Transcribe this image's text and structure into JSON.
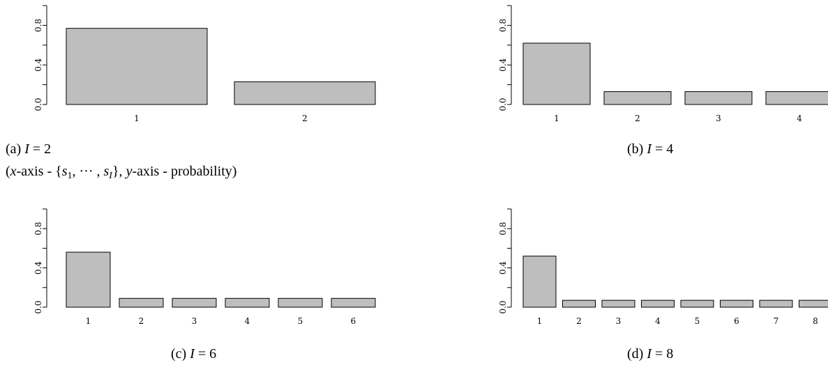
{
  "chart_data": [
    {
      "type": "bar",
      "caption_prefix": "(a) ",
      "caption_var": "I",
      "caption_eq": " = 2",
      "categories": [
        "1",
        "2"
      ],
      "values": [
        0.77,
        0.23
      ],
      "ylim": [
        0,
        1
      ],
      "yticks": [
        "0.0",
        "0.4",
        "0.8"
      ],
      "grid": false
    },
    {
      "type": "bar",
      "caption_prefix": "(b) ",
      "caption_var": "I",
      "caption_eq": " = 4",
      "categories": [
        "1",
        "2",
        "3",
        "4"
      ],
      "values": [
        0.62,
        0.13,
        0.13,
        0.13
      ],
      "ylim": [
        0,
        1
      ],
      "yticks": [
        "0.0",
        "0.4",
        "0.8"
      ],
      "grid": false
    },
    {
      "type": "bar",
      "caption_prefix": "(c) ",
      "caption_var": "I",
      "caption_eq": " = 6",
      "categories": [
        "1",
        "2",
        "3",
        "4",
        "5",
        "6"
      ],
      "values": [
        0.56,
        0.09,
        0.09,
        0.09,
        0.09,
        0.09
      ],
      "ylim": [
        0,
        1
      ],
      "yticks": [
        "0.0",
        "0.4",
        "0.8"
      ],
      "grid": false
    },
    {
      "type": "bar",
      "caption_prefix": "(d) ",
      "caption_var": "I",
      "caption_eq": " = 8",
      "categories": [
        "1",
        "2",
        "3",
        "4",
        "5",
        "6",
        "7",
        "8"
      ],
      "values": [
        0.52,
        0.07,
        0.07,
        0.07,
        0.07,
        0.07,
        0.07,
        0.07
      ],
      "ylim": [
        0,
        1
      ],
      "yticks": [
        "0.0",
        "0.4",
        "0.8"
      ],
      "grid": false
    }
  ],
  "note": {
    "open": "(",
    "x_var": "x",
    "x_text": "-axis - {",
    "s1": "s",
    "sub1": "1",
    "dots": ", ··· , ",
    "sI": "s",
    "subI": "I",
    "close_brace": "}, ",
    "y_var": "y",
    "y_text": "-axis - probability)"
  },
  "colors": {
    "bar_fill": "#bebebe",
    "bar_stroke": "#000000",
    "axis": "#000000"
  }
}
